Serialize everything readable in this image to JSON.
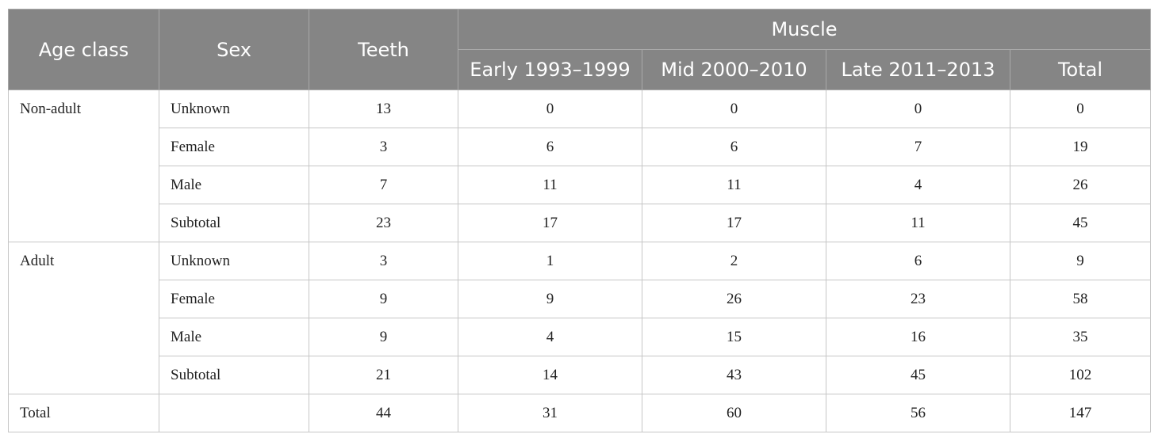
{
  "table": {
    "headers": {
      "age_class": "Age class",
      "sex": "Sex",
      "teeth": "Teeth",
      "muscle": "Muscle",
      "muscle_sub": [
        "Early 1993–1999",
        "Mid 2000–2010",
        "Late 2011–2013",
        "Total"
      ]
    },
    "groups": [
      {
        "age_class": "Non-adult",
        "rows": [
          {
            "sex": "Unknown",
            "teeth": "13",
            "early": "0",
            "mid": "0",
            "late": "0",
            "total": "0"
          },
          {
            "sex": "Female",
            "teeth": "3",
            "early": "6",
            "mid": "6",
            "late": "7",
            "total": "19"
          },
          {
            "sex": "Male",
            "teeth": "7",
            "early": "11",
            "mid": "11",
            "late": "4",
            "total": "26"
          },
          {
            "sex": "Subtotal",
            "teeth": "23",
            "early": "17",
            "mid": "17",
            "late": "11",
            "total": "45"
          }
        ]
      },
      {
        "age_class": "Adult",
        "rows": [
          {
            "sex": "Unknown",
            "teeth": "3",
            "early": "1",
            "mid": "2",
            "late": "6",
            "total": "9"
          },
          {
            "sex": "Female",
            "teeth": "9",
            "early": "9",
            "mid": "26",
            "late": "23",
            "total": "58"
          },
          {
            "sex": "Male",
            "teeth": "9",
            "early": "4",
            "mid": "15",
            "late": "16",
            "total": "35"
          },
          {
            "sex": "Subtotal",
            "teeth": "21",
            "early": "14",
            "mid": "43",
            "late": "45",
            "total": "102"
          }
        ]
      }
    ],
    "total_row": {
      "label": "Total",
      "sex": "",
      "teeth": "44",
      "early": "31",
      "mid": "60",
      "late": "56",
      "total": "147"
    }
  }
}
